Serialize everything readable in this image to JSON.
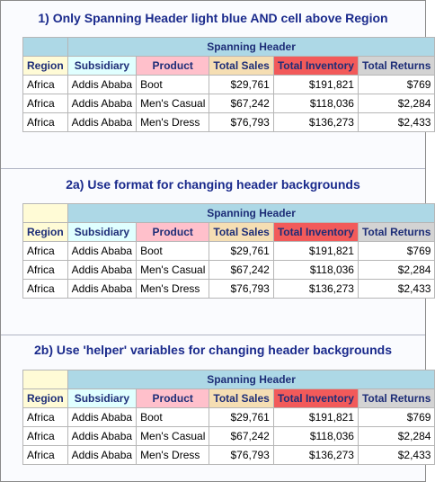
{
  "sections": [
    {
      "title": "1) Only Spanning Header light blue AND cell above Region",
      "spanning_header": "Spanning Header",
      "columns": [
        "Region",
        "Subsidiary",
        "Product",
        "Total Sales",
        "Total Inventory",
        "Total Returns"
      ],
      "rows": [
        [
          "Africa",
          "Addis Ababa",
          "Boot",
          "$29,761",
          "$191,821",
          "$769"
        ],
        [
          "Africa",
          "Addis Ababa",
          "Men's Casual",
          "$67,242",
          "$118,036",
          "$2,284"
        ],
        [
          "Africa",
          "Addis Ababa",
          "Men's Dress",
          "$76,793",
          "$136,273",
          "$2,433"
        ]
      ]
    },
    {
      "title": "2a) Use format for changing header backgrounds",
      "spanning_header": "Spanning Header",
      "columns": [
        "Region",
        "Subsidiary",
        "Product",
        "Total Sales",
        "Total Inventory",
        "Total Returns"
      ],
      "rows": [
        [
          "Africa",
          "Addis Ababa",
          "Boot",
          "$29,761",
          "$191,821",
          "$769"
        ],
        [
          "Africa",
          "Addis Ababa",
          "Men's Casual",
          "$67,242",
          "$118,036",
          "$2,284"
        ],
        [
          "Africa",
          "Addis Ababa",
          "Men's Dress",
          "$76,793",
          "$136,273",
          "$2,433"
        ]
      ]
    },
    {
      "title": "2b) Use 'helper' variables for changing header backgrounds",
      "spanning_header": "Spanning Header",
      "columns": [
        "Region",
        "Subsidiary",
        "Product",
        "Total Sales",
        "Total Inventory",
        "Total Returns"
      ],
      "rows": [
        [
          "Africa",
          "Addis Ababa",
          "Boot",
          "$29,761",
          "$191,821",
          "$769"
        ],
        [
          "Africa",
          "Addis Ababa",
          "Men's Casual",
          "$67,242",
          "$118,036",
          "$2,284"
        ],
        [
          "Africa",
          "Addis Ababa",
          "Men's Dress",
          "$76,793",
          "$136,273",
          "$2,433"
        ]
      ]
    }
  ],
  "colors": {
    "spanning_header_bg": "#add8e6",
    "region_header_bg": "#fffbd6",
    "subsidiary_header_bg": "#e0ffff",
    "product_header_bg": "#ffc0cb",
    "sales_header_bg": "#f5deb3",
    "inventory_header_bg": "#f25a5a",
    "returns_header_bg": "#d3d3d3",
    "title_color": "#1a2a8c"
  }
}
